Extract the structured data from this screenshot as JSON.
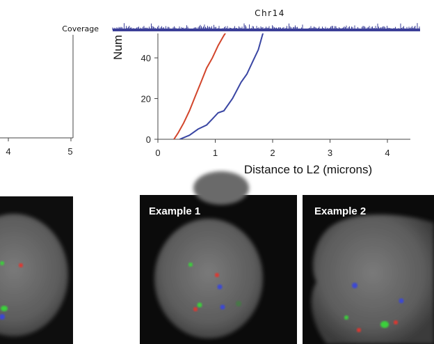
{
  "chart_data": [
    {
      "type": "line",
      "title": "",
      "xlabel": "",
      "ylabel": "",
      "xticks": [
        "4",
        "5"
      ],
      "note": ""
    },
    {
      "type": "line",
      "title": "Chr14",
      "coverage_label": "Coverage",
      "xlabel": "Distance to L2 (microns)",
      "ylabel": "Num",
      "xlim": [
        0,
        4.4
      ],
      "ylim": [
        0,
        52
      ],
      "xticks": [
        "0",
        "1",
        "2",
        "3",
        "4"
      ],
      "yticks": [
        "0",
        "20",
        "40"
      ],
      "series": [
        {
          "color": "#d2452b",
          "x": [
            0.28,
            0.35,
            0.45,
            0.55,
            0.65,
            0.75,
            0.85,
            0.95,
            1.05,
            1.15,
            1.22
          ],
          "y": [
            0,
            3,
            8,
            14,
            21,
            28,
            35,
            40,
            46,
            51,
            54
          ]
        },
        {
          "color": "#3a46a3",
          "x": [
            0.38,
            0.55,
            0.7,
            0.85,
            0.95,
            1.05,
            1.15,
            1.3,
            1.45,
            1.55,
            1.65,
            1.75,
            1.85
          ],
          "y": [
            0,
            2,
            5,
            7,
            10,
            13,
            14,
            20,
            28,
            32,
            38,
            44,
            54
          ]
        }
      ]
    }
  ],
  "panels": [
    {
      "label": ""
    },
    {
      "label": "Example 1"
    },
    {
      "label": "Example 2"
    }
  ],
  "colors": {
    "red": "#d2452b",
    "blue": "#3a46a3",
    "coverage": "#3b3f98"
  }
}
